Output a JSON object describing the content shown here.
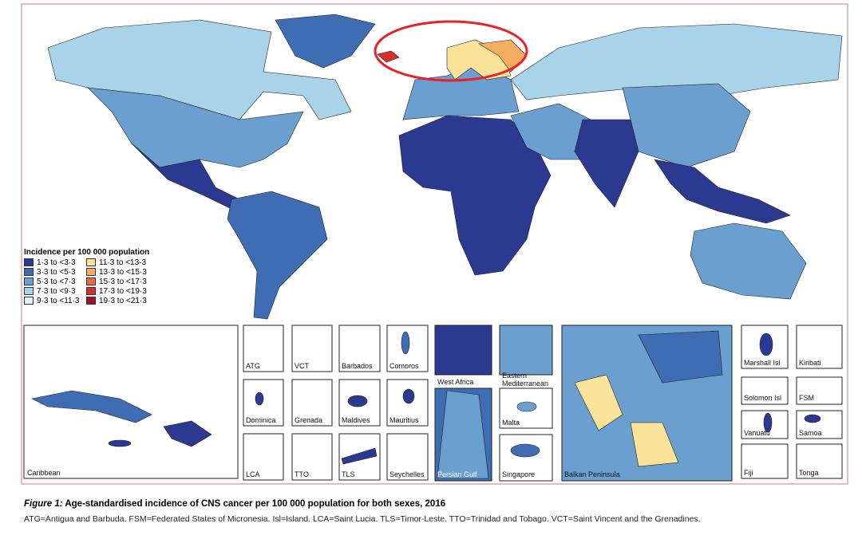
{
  "legend": {
    "title": "Incidence per 100 000 population",
    "items": [
      {
        "label": "1·3 to <3·3",
        "color": "#2b3990"
      },
      {
        "label": "3·3 to <5·3",
        "color": "#3f6db3"
      },
      {
        "label": "5·3 to <7·3",
        "color": "#6a9fd0"
      },
      {
        "label": "7·3 to <9·3",
        "color": "#a9d3e8"
      },
      {
        "label": "9·3 to <11·3",
        "color": "#dff0f6"
      },
      {
        "label": "11·3 to <13·3",
        "color": "#fbe39a"
      },
      {
        "label": "13·3 to <15·3",
        "color": "#f6ad62"
      },
      {
        "label": "15·3 to <17·3",
        "color": "#ea6a3c"
      },
      {
        "label": "17·3 to <19·3",
        "color": "#d7302a"
      },
      {
        "label": "19·3 to <21·3",
        "color": "#a50f23"
      }
    ]
  },
  "insets": [
    {
      "label": "Caribbean"
    },
    {
      "label": "ATG"
    },
    {
      "label": "VCT"
    },
    {
      "label": "Barbados"
    },
    {
      "label": "Comoros"
    },
    {
      "label": "Dominica"
    },
    {
      "label": "Grenada"
    },
    {
      "label": "Maldives"
    },
    {
      "label": "Mauritius"
    },
    {
      "label": "LCA"
    },
    {
      "label": "TTO"
    },
    {
      "label": "TLS"
    },
    {
      "label": "Seychelles"
    },
    {
      "label": "West Africa"
    },
    {
      "label": "Persian Gulf"
    },
    {
      "label": "Eastern Mediterranean"
    },
    {
      "label": "Malta"
    },
    {
      "label": "Singapore"
    },
    {
      "label": "Balkan Peninsula"
    },
    {
      "label": "Marshall Isl"
    },
    {
      "label": "Kiribati"
    },
    {
      "label": "Solomon Isl"
    },
    {
      "label": "FSM"
    },
    {
      "label": "Vanuatu"
    },
    {
      "label": "Samoa"
    },
    {
      "label": "Fiji"
    },
    {
      "label": "Tonga"
    }
  ],
  "caption": {
    "figure": "Figure 1:",
    "title": "Age-standardised incidence of CNS cancer per 100 000 population for both sexes, 2016",
    "note": "ATG=Antigua and Barbuda. FSM=Federated States of Micronesia. Isl=Island. LCA=Saint Lucia. TLS=Timor-Leste. TTO=Trinidad and Tobago. VCT=Saint Vincent and the Grenadines."
  }
}
